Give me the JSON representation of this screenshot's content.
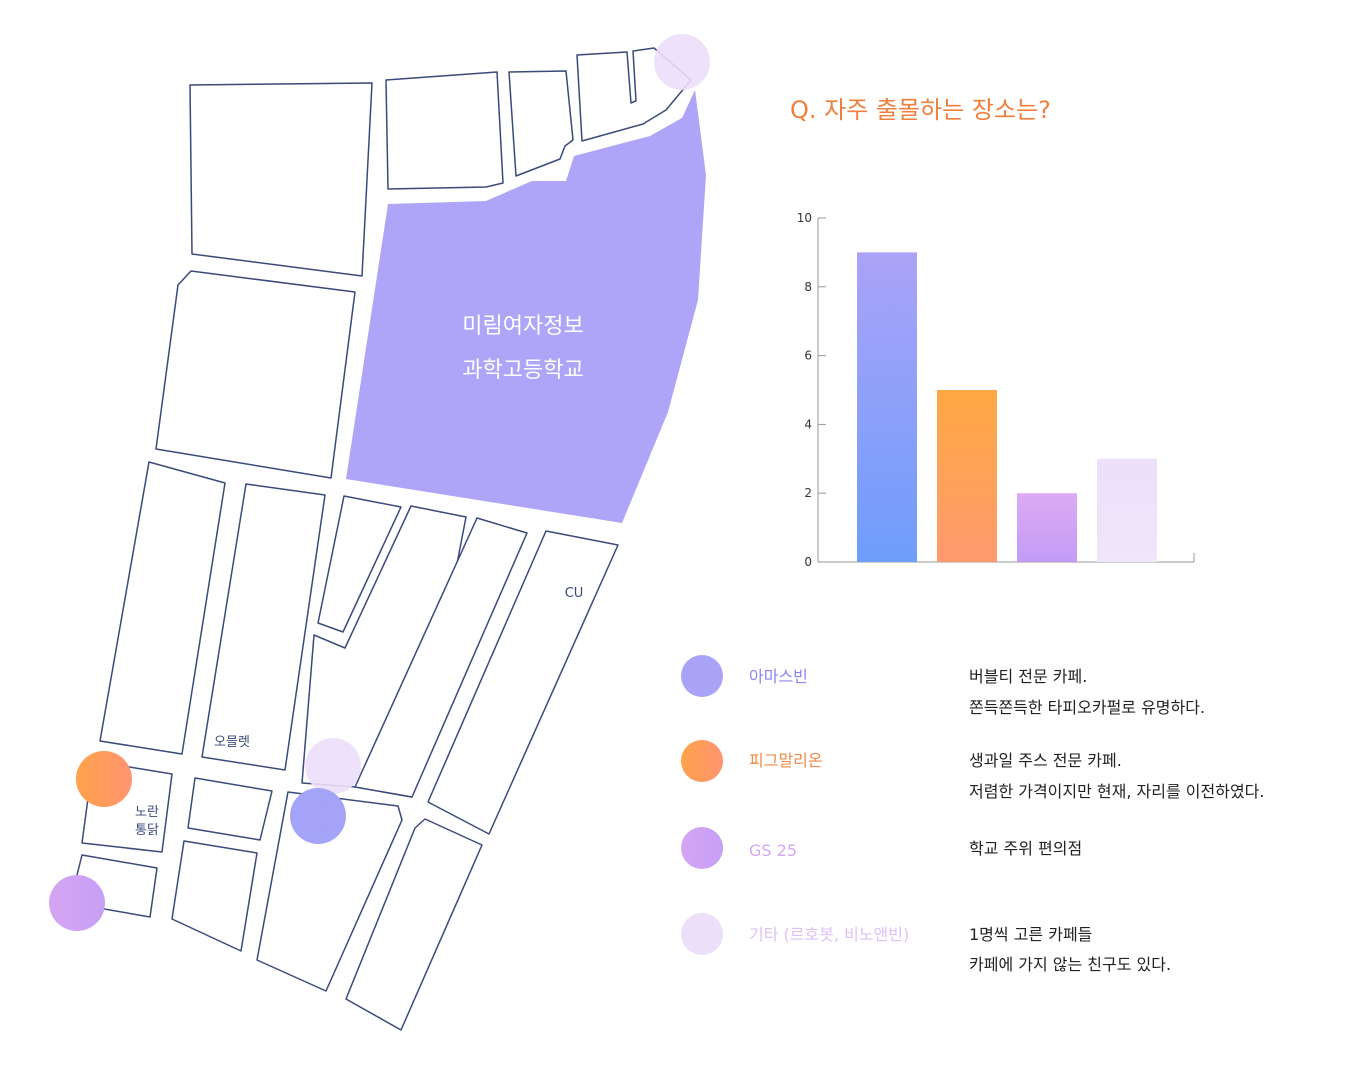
{
  "question": "Q. 자주 출몰하는 장소는?",
  "map": {
    "school_label_line1": "미림여자정보",
    "school_label_line2": "과학고등학교",
    "labels": {
      "cu": "CU",
      "omelet": "오믈렛",
      "noran_line1": "노란",
      "noran_line2": "통닭"
    }
  },
  "colors": {
    "amasbin": "#a9a3f7",
    "pigmallion": "#ff9a5a",
    "gs25": "#d4a3f5",
    "other": "#ecdff9",
    "question": "#f07f3c",
    "school": "#aea4f8",
    "block_stroke": "#3a4a7a"
  },
  "chart_data": {
    "type": "bar",
    "categories": [
      "아마스빈",
      "피그말리온",
      "GS 25",
      "기타 (르호봇, 비노앤빈)"
    ],
    "values": [
      9,
      5,
      2,
      3
    ],
    "ylim": [
      0,
      10
    ],
    "yticks": [
      "0",
      "2",
      "4",
      "6",
      "8",
      "10"
    ],
    "title": "",
    "xlabel": "",
    "ylabel": ""
  },
  "legend": [
    {
      "name": "아마스빈",
      "desc1": "버블티 전문 카페.",
      "desc2": "쫀득쫀득한 타피오카펄로 유명하다."
    },
    {
      "name": "피그말리온",
      "desc1": "생과일 주스 전문 카페.",
      "desc2": "저렴한 가격이지만 현재, 자리를 이전하였다."
    },
    {
      "name": "GS 25",
      "desc1": "학교 주위 편의점",
      "desc2": ""
    },
    {
      "name": "기타 (르호봇, 비노앤빈)",
      "desc1": "1명씩 고른 카페들",
      "desc2": "카페에 가지 않는 친구도 있다."
    }
  ]
}
